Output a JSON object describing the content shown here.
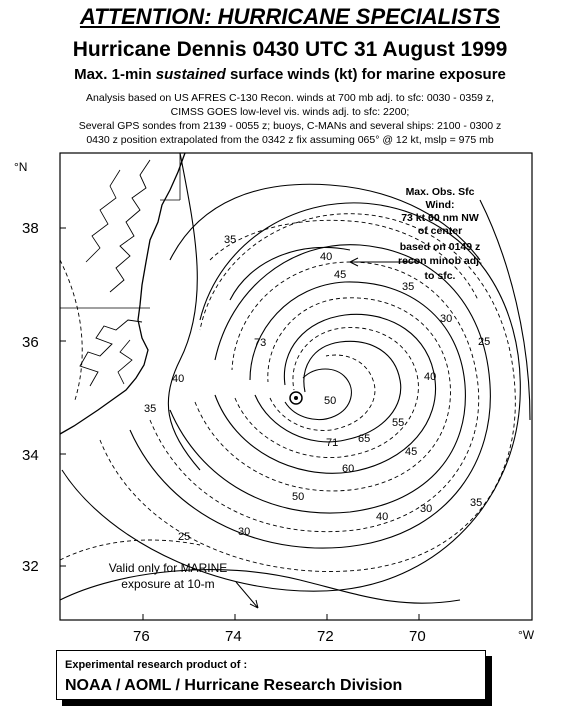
{
  "header": {
    "attention": "ATTENTION: HURRICANE SPECIALISTS",
    "title": "Hurricane Dennis 0430 UTC 31 August 1999",
    "subtitle_pre": "Max. 1-min ",
    "subtitle_italic": "sustained",
    "subtitle_post": " surface winds (kt) for marine exposure",
    "analysis_lines": [
      "Analysis based on US AFRES C-130 Recon. winds at 700 mb adj. to sfc: 0030 - 0359 z,",
      "CIMSS GOES low-level vis. winds adj. to sfc:  2200;",
      "Several GPS sondes from 2139 - 0055 z; buoys, C-MANs and several ships:  2100 - 0300 z",
      "0430 z position extrapolated from the 0342 z fix assuming  065° @ 12 kt, mslp = 975 mb"
    ]
  },
  "chart_data": {
    "type": "map",
    "lat_ticks": [
      "38",
      "36",
      "34",
      "32"
    ],
    "lat_unit": "°N",
    "lon_ticks": [
      "76",
      "74",
      "72",
      "70"
    ],
    "lon_unit": "°W",
    "lat_range": [
      31,
      39.5
    ],
    "lon_range": [
      77.5,
      67.5
    ],
    "storm_center": {
      "lat": 35.1,
      "lon": 72.4
    },
    "max_obs_note": [
      "Max. Obs. Sfc",
      "Wind:",
      "73 kt  60 nm NW",
      "of center",
      "based on 0149 z",
      "recon minob adj.",
      "to sfc."
    ],
    "valid_note": [
      "Valid only for MARINE",
      "exposure at 10-m"
    ],
    "contour_labels": [
      "25",
      "30",
      "35",
      "40",
      "45",
      "50",
      "55",
      "60",
      "65",
      "71",
      "73"
    ]
  },
  "footer": {
    "line1": "Experimental research product of :",
    "line2": "NOAA / AOML / Hurricane Research Division"
  }
}
